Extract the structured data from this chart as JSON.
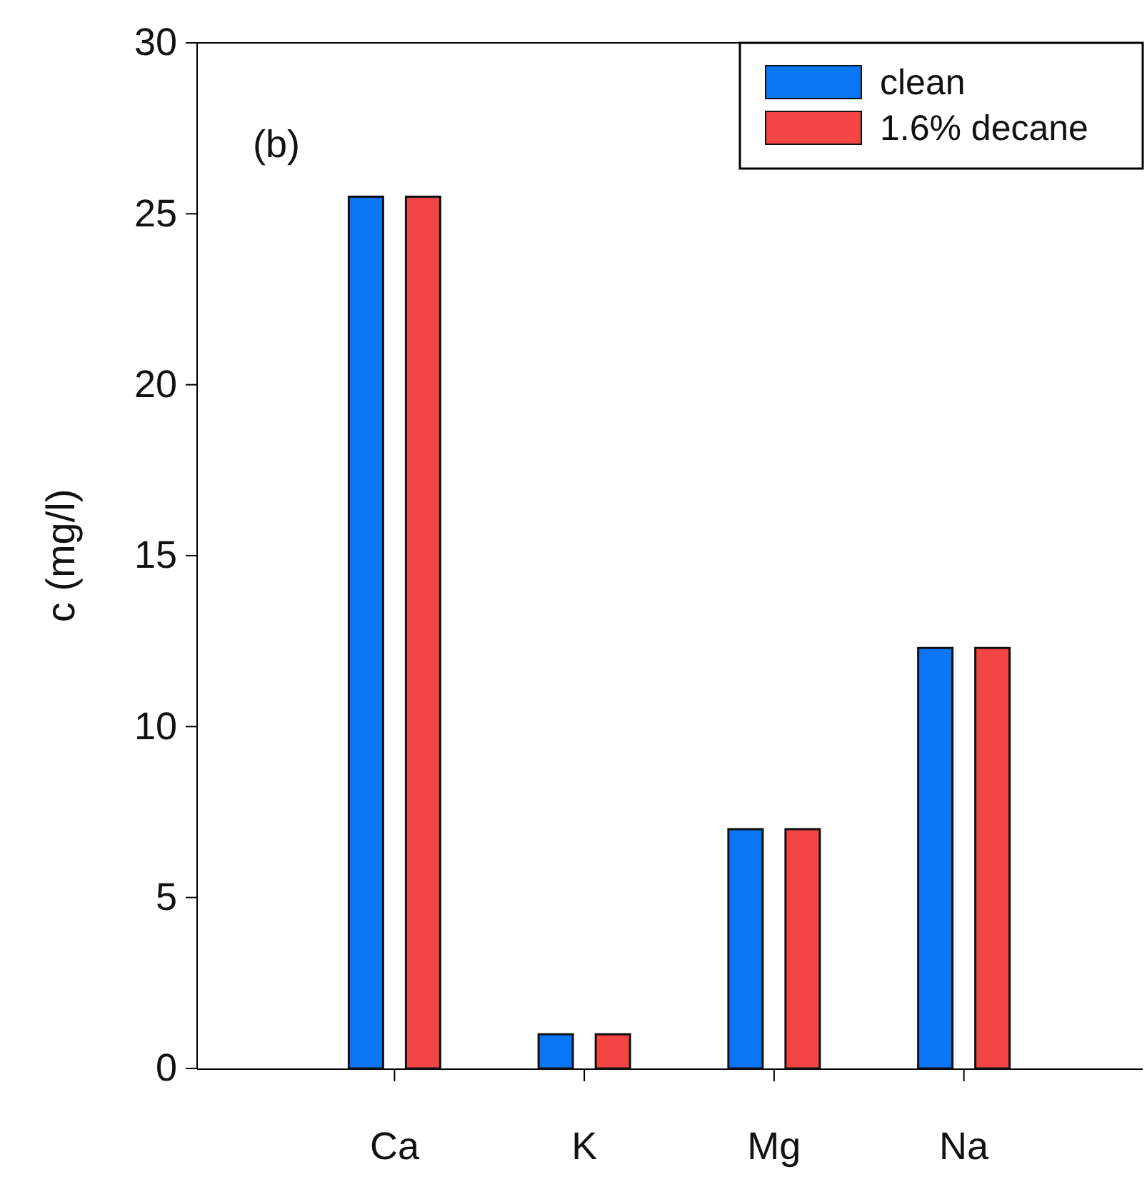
{
  "chart_data": {
    "type": "bar",
    "ylabel": "c (mg/l)",
    "categories": [
      "Ca",
      "K",
      "Mg",
      "Na"
    ],
    "series": [
      {
        "name": "clean",
        "color": "#0a75f5",
        "values": [
          25.5,
          1.0,
          7.0,
          12.3
        ]
      },
      {
        "name": "1.6% decane",
        "color": "#f44545",
        "values": [
          25.5,
          1.0,
          7.0,
          12.3
        ]
      }
    ],
    "ylim": [
      0,
      30
    ],
    "yticks": [
      0,
      5,
      10,
      15,
      20,
      25,
      30
    ],
    "grid": false,
    "legend": "top right",
    "annotations": [
      "(b)"
    ]
  }
}
